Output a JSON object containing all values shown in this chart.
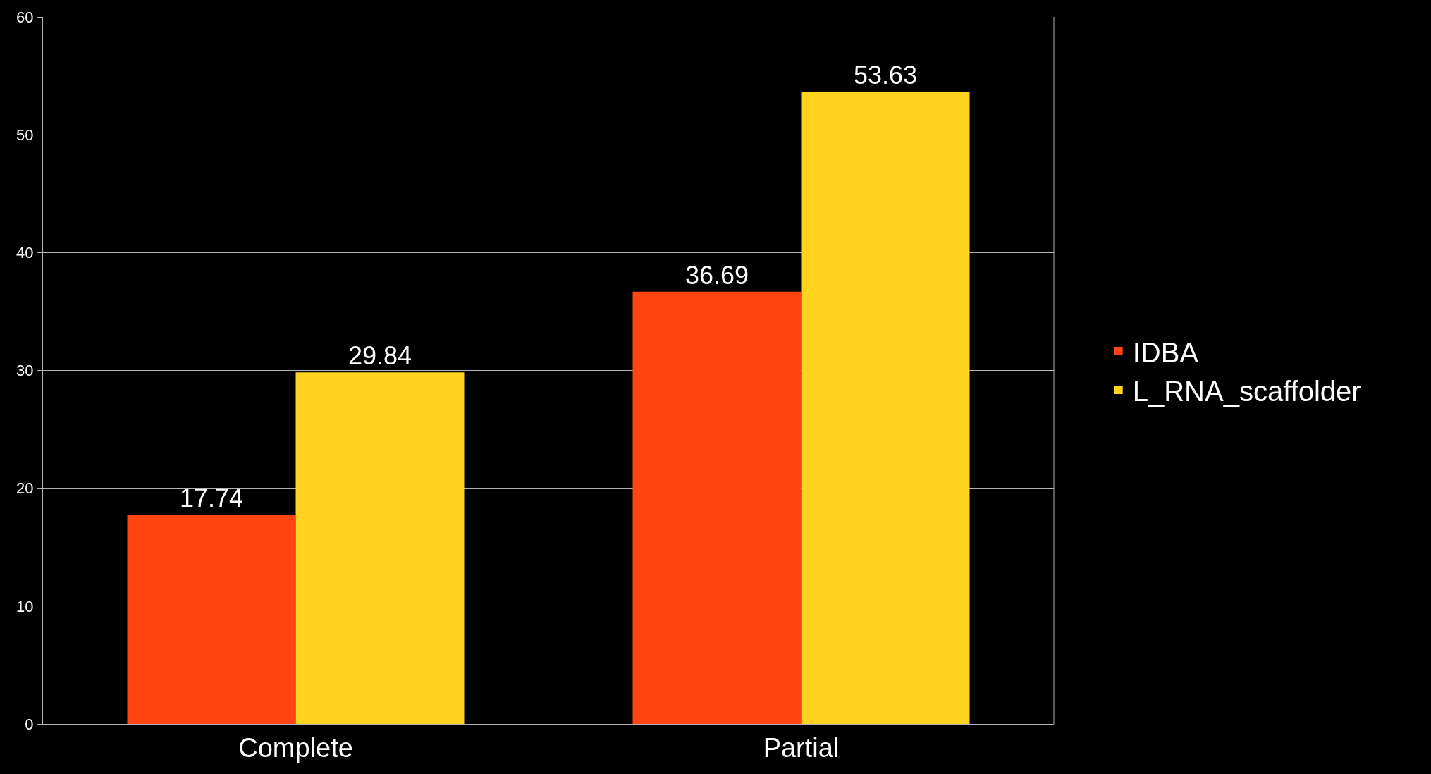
{
  "chart_data": {
    "type": "bar",
    "categories": [
      "Complete",
      "Partial"
    ],
    "series": [
      {
        "name": "IDBA",
        "color": "#ff4512",
        "values": [
          17.74,
          36.69
        ]
      },
      {
        "name": "L_RNA_scaffolder",
        "color": "#ffd320",
        "values": [
          29.84,
          53.63
        ]
      }
    ],
    "ylim": [
      0,
      60
    ],
    "yticks": [
      0,
      10,
      20,
      30,
      40,
      50,
      60
    ],
    "grid": "y",
    "legend": "right",
    "data_labels": true
  }
}
